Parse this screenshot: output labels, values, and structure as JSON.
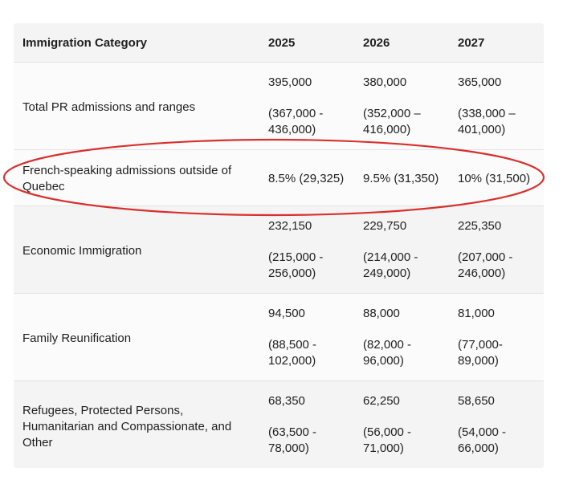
{
  "header": {
    "category": "Immigration Category",
    "y2025": "2025",
    "y2026": "2026",
    "y2027": "2027"
  },
  "rows": [
    {
      "label": "Total PR admissions and ranges",
      "y2025": {
        "value": "395,000",
        "range1": "(367,000 -",
        "range2": "436,000)"
      },
      "y2026": {
        "value": "380,000",
        "range1": "(352,000 –",
        "range2": "416,000)"
      },
      "y2027": {
        "value": "365,000",
        "range1": "(338,000 –",
        "range2": "401,000)"
      }
    },
    {
      "label1": "French-speaking admissions outside of",
      "label2": "Quebec",
      "y2025": "8.5% (29,325)",
      "y2026": "9.5% (31,350)",
      "y2027": "10% (31,500)"
    },
    {
      "label": "Economic Immigration",
      "y2025": {
        "value": "232,150",
        "range1": "(215,000 -",
        "range2": "256,000)"
      },
      "y2026": {
        "value": "229,750",
        "range1": "(214,000 -",
        "range2": "249,000)"
      },
      "y2027": {
        "value": "225,350",
        "range1": "(207,000 -",
        "range2": "246,000)"
      }
    },
    {
      "label": "Family Reunification",
      "y2025": {
        "value": "94,500",
        "range1": "(88,500 -",
        "range2": "102,000)"
      },
      "y2026": {
        "value": "88,000",
        "range1": "(82,000 -",
        "range2": "96,000)"
      },
      "y2027": {
        "value": "81,000",
        "range1": "(77,000-",
        "range2": "89,000)"
      }
    },
    {
      "label1": "Refugees, Protected Persons,",
      "label2": "Humanitarian and Compassionate, and",
      "label3": "Other",
      "y2025": {
        "value": "68,350",
        "range1": "(63,500 -",
        "range2": "78,000)"
      },
      "y2026": {
        "value": "62,250",
        "range1": "(56,000 -",
        "range2": "71,000)"
      },
      "y2027": {
        "value": "58,650",
        "range1": "(54,000 -",
        "range2": "66,000)"
      }
    }
  ],
  "highlight": {
    "color": "#d9302c"
  }
}
